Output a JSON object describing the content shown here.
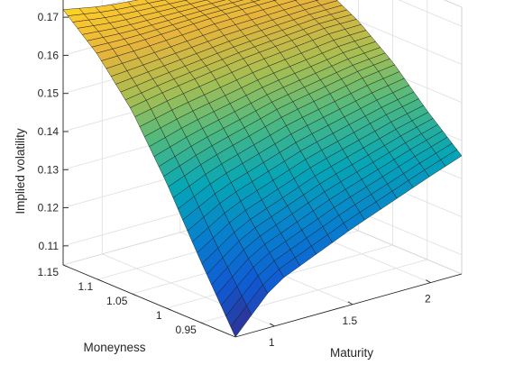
{
  "chart_data": {
    "type": "surface3d",
    "title": "",
    "xlabel": "Maturity",
    "ylabel": "Moneyness",
    "zlabel": "Implied volatility",
    "x_range": [
      0.75,
      2.2
    ],
    "y_range": [
      0.9,
      1.15
    ],
    "z_range": [
      0.105,
      0.175
    ],
    "x_ticks": [
      "1",
      "1.5",
      "2"
    ],
    "y_ticks": [
      "0.95",
      "1",
      "1.05",
      "1.1",
      "1.15"
    ],
    "z_ticks": [
      "0.11",
      "0.12",
      "0.13",
      "0.14",
      "0.15",
      "0.16",
      "0.17"
    ],
    "grid": true,
    "colormap": "parula",
    "surface_points": {
      "maturity": [
        0.75,
        1.0,
        1.5,
        2.0,
        2.2
      ],
      "moneyness": [
        0.9,
        0.95,
        1.0,
        1.05,
        1.1,
        1.15
      ],
      "implied_volatility": [
        [
          0.105,
          0.116,
          0.125,
          0.133,
          0.136
        ],
        [
          0.121,
          0.128,
          0.136,
          0.142,
          0.144
        ],
        [
          0.138,
          0.142,
          0.148,
          0.152,
          0.153
        ],
        [
          0.153,
          0.155,
          0.158,
          0.16,
          0.16
        ],
        [
          0.164,
          0.164,
          0.165,
          0.165,
          0.165
        ],
        [
          0.172,
          0.17,
          0.168,
          0.167,
          0.166
        ]
      ]
    }
  }
}
